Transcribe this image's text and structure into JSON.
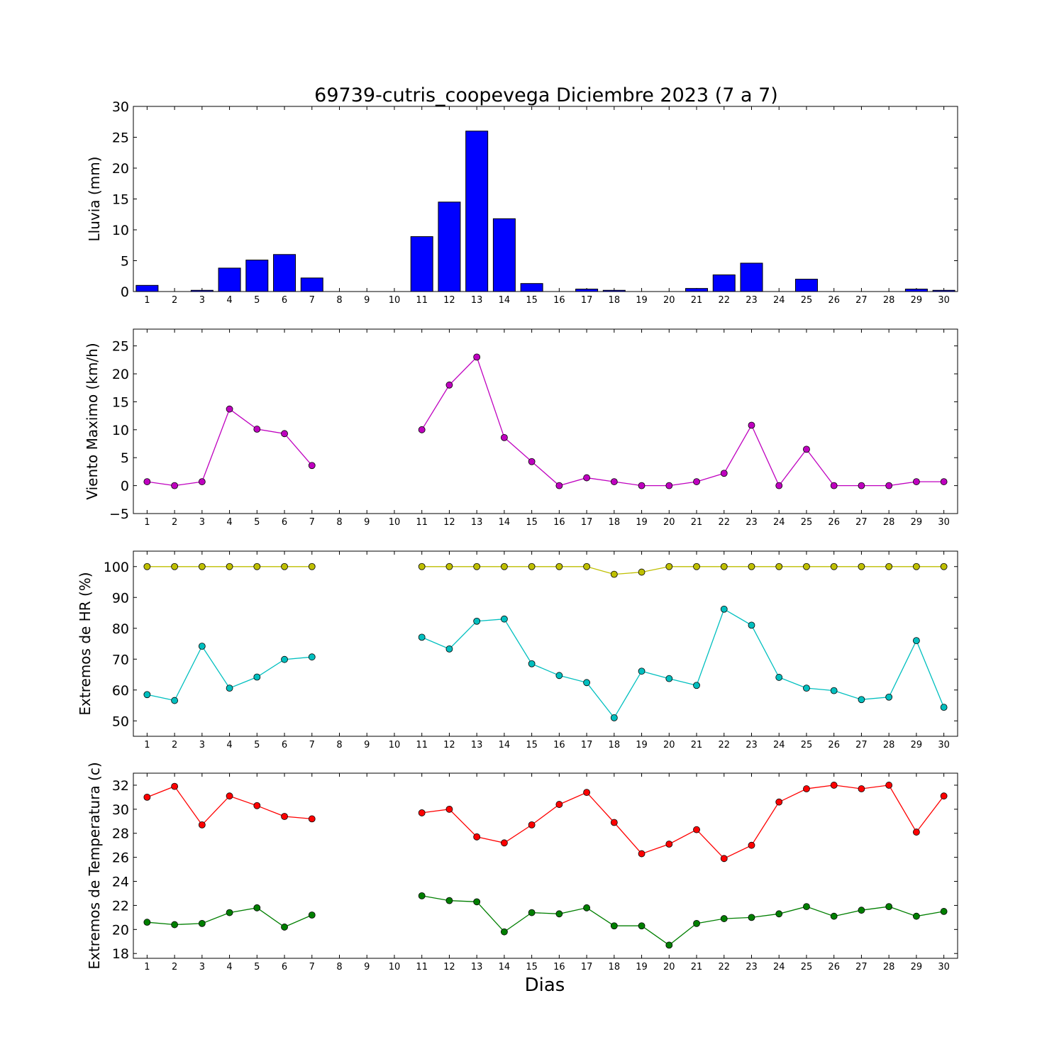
{
  "chart_data": [
    {
      "type": "bar",
      "title": "69739-cutris_coopevega Diciembre 2023  (7 a 7)",
      "ylabel": "Lluvia (mm)",
      "xlabel": "",
      "categories": [
        "1",
        "2",
        "3",
        "4",
        "5",
        "6",
        "7",
        "8",
        "9",
        "10",
        "11",
        "12",
        "13",
        "14",
        "15",
        "16",
        "17",
        "18",
        "19",
        "20",
        "21",
        "22",
        "23",
        "24",
        "25",
        "26",
        "27",
        "28",
        "29",
        "30"
      ],
      "values": [
        1.0,
        0.0,
        0.2,
        3.8,
        5.1,
        6.0,
        2.2,
        null,
        null,
        null,
        8.9,
        14.5,
        26.0,
        11.8,
        1.3,
        0.0,
        0.4,
        0.2,
        0.0,
        0.0,
        0.5,
        2.7,
        4.6,
        0.0,
        2.0,
        0.0,
        0.0,
        0.0,
        0.4,
        0.2
      ],
      "ylim": [
        0,
        30
      ],
      "yticks": [
        0,
        5,
        10,
        15,
        20,
        25,
        30
      ],
      "color": "#0000ff"
    },
    {
      "type": "line",
      "ylabel": "Viento Maximo (km/h)",
      "xlabel": "",
      "categories": [
        "1",
        "2",
        "3",
        "4",
        "5",
        "6",
        "7",
        "8",
        "9",
        "10",
        "11",
        "12",
        "13",
        "14",
        "15",
        "16",
        "17",
        "18",
        "19",
        "20",
        "21",
        "22",
        "23",
        "24",
        "25",
        "26",
        "27",
        "28",
        "29",
        "30"
      ],
      "series": [
        {
          "values": [
            0.7,
            0.0,
            0.7,
            13.7,
            10.1,
            9.3,
            3.6,
            null,
            null,
            null,
            10.0,
            18.0,
            23.0,
            8.6,
            4.3,
            0.0,
            1.4,
            0.7,
            0.0,
            0.0,
            0.7,
            2.2,
            10.8,
            0.0,
            6.5,
            0.0,
            0.0,
            0.0,
            0.7,
            0.7
          ],
          "color": "#bf00bf"
        }
      ],
      "ylim": [
        -5,
        28
      ],
      "yticks": [
        -5,
        0,
        5,
        10,
        15,
        20,
        25
      ]
    },
    {
      "type": "line",
      "ylabel": "Extremos de HR (%)",
      "xlabel": "",
      "categories": [
        "1",
        "2",
        "3",
        "4",
        "5",
        "6",
        "7",
        "8",
        "9",
        "10",
        "11",
        "12",
        "13",
        "14",
        "15",
        "16",
        "17",
        "18",
        "19",
        "20",
        "21",
        "22",
        "23",
        "24",
        "25",
        "26",
        "27",
        "28",
        "29",
        "30"
      ],
      "series": [
        {
          "values": [
            100,
            100,
            100,
            100,
            100,
            100,
            100,
            null,
            null,
            null,
            100,
            100,
            100,
            100,
            100,
            100,
            100,
            97.5,
            98.2,
            100,
            100,
            100,
            100,
            100,
            100,
            100,
            100,
            100,
            100,
            100
          ],
          "color": "#bfbf00"
        },
        {
          "values": [
            58.5,
            56.6,
            74.2,
            60.6,
            64.2,
            69.9,
            70.7,
            null,
            null,
            null,
            77.1,
            73.3,
            82.3,
            83.0,
            68.5,
            64.7,
            62.4,
            51.0,
            66.1,
            63.7,
            61.5,
            86.2,
            81.0,
            64.1,
            60.6,
            59.8,
            56.9,
            57.7,
            76.0,
            54.4
          ],
          "color": "#00bfbf"
        }
      ],
      "ylim": [
        45,
        105
      ],
      "yticks": [
        50,
        60,
        70,
        80,
        90,
        100
      ]
    },
    {
      "type": "line",
      "ylabel": "Extremos de Temperatura (c)",
      "xlabel": "Dias",
      "categories": [
        "1",
        "2",
        "3",
        "4",
        "5",
        "6",
        "7",
        "8",
        "9",
        "10",
        "11",
        "12",
        "13",
        "14",
        "15",
        "16",
        "17",
        "18",
        "19",
        "20",
        "21",
        "22",
        "23",
        "24",
        "25",
        "26",
        "27",
        "28",
        "29",
        "30"
      ],
      "series": [
        {
          "values": [
            31.0,
            31.9,
            28.7,
            31.1,
            30.3,
            29.4,
            29.2,
            null,
            null,
            null,
            29.7,
            30.0,
            27.7,
            27.2,
            28.7,
            30.4,
            31.4,
            28.9,
            26.3,
            27.1,
            28.3,
            25.9,
            27.0,
            30.6,
            31.7,
            32.0,
            31.7,
            32.0,
            28.1,
            31.1
          ],
          "color": "#ff0000"
        },
        {
          "values": [
            20.6,
            20.4,
            20.5,
            21.4,
            21.8,
            20.2,
            21.2,
            null,
            null,
            null,
            22.8,
            22.4,
            22.3,
            19.8,
            21.4,
            21.3,
            21.8,
            20.3,
            20.3,
            18.7,
            20.5,
            20.9,
            21.0,
            21.3,
            21.9,
            21.1,
            21.6,
            21.9,
            21.1,
            21.5
          ],
          "color": "#007f00"
        }
      ],
      "ylim": [
        17.6,
        33.0
      ],
      "yticks": [
        18,
        20,
        22,
        24,
        26,
        28,
        30,
        32
      ]
    }
  ]
}
